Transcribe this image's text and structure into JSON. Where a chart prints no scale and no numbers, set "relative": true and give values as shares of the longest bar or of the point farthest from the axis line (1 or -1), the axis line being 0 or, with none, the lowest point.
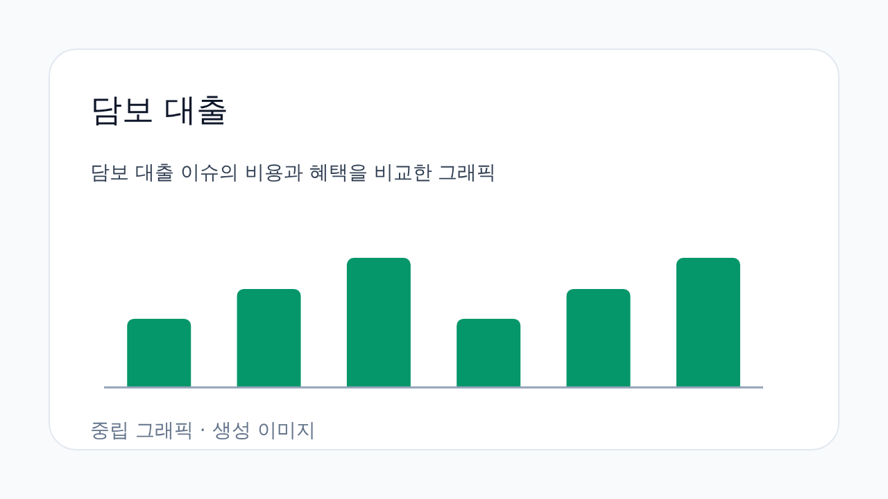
{
  "chart_data": {
    "type": "bar",
    "title": "담보 대출",
    "subtitle": "담보 대출 이슈의 비용과 혜택을 비교한 그래픽",
    "categories": [
      null,
      null,
      null,
      null,
      null,
      null
    ],
    "values": [
      0.53,
      0.76,
      1,
      0.53,
      0.76,
      1
    ],
    "color": "#059669",
    "relative": true,
    "annotations": [
      "중립 그래픽 · 생성 이미지"
    ]
  }
}
